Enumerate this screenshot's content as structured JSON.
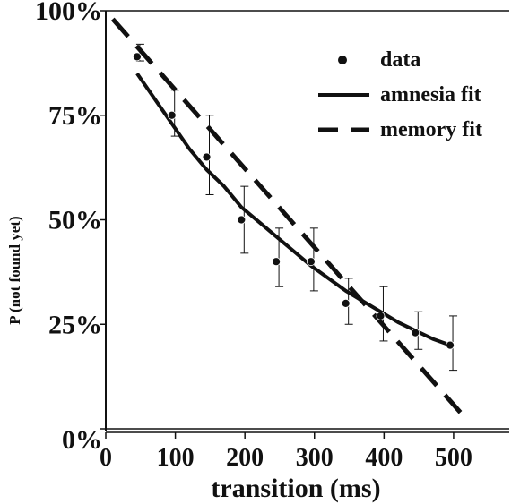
{
  "chart_data": {
    "type": "scatter",
    "title": "",
    "xlabel": "transition (ms)",
    "ylabel": "P (not found yet)",
    "xlim": [
      0,
      580
    ],
    "ylim": [
      0,
      100
    ],
    "x_ticks": [
      "0",
      "100",
      "200",
      "300",
      "400",
      "500"
    ],
    "x_tick_values": [
      0,
      100,
      200,
      300,
      400,
      500
    ],
    "y_ticks": [
      "0%",
      "25%",
      "50%",
      "75%",
      "100%"
    ],
    "y_tick_values": [
      0,
      25,
      50,
      75,
      100
    ],
    "grid": false,
    "legend_position": "top-right",
    "series": [
      {
        "name": "data",
        "style": "points-with-error-bars",
        "x": [
          45,
          95,
          145,
          195,
          245,
          295,
          345,
          395,
          445,
          495
        ],
        "y": [
          89,
          75,
          65,
          50,
          40,
          40,
          30,
          27,
          23,
          20
        ],
        "err_low": [
          1,
          5,
          9,
          8,
          6,
          7,
          5,
          6,
          4,
          6
        ],
        "err_high": [
          3,
          6,
          10,
          8,
          8,
          8,
          6,
          7,
          5,
          7
        ]
      },
      {
        "name": "amnesia fit",
        "style": "solid",
        "x": [
          45,
          70,
          95,
          120,
          145,
          170,
          195,
          220,
          245,
          270,
          295,
          320,
          345,
          370,
          395,
          420,
          445,
          470,
          495
        ],
        "y": [
          85,
          79,
          73,
          67,
          62,
          58,
          53,
          49.5,
          46,
          42.5,
          39,
          36,
          33,
          30.5,
          28,
          25.5,
          23.5,
          21.5,
          20
        ]
      },
      {
        "name": "memory fit",
        "style": "dashed",
        "x": [
          10,
          520
        ],
        "y": [
          98,
          2
        ]
      }
    ]
  }
}
